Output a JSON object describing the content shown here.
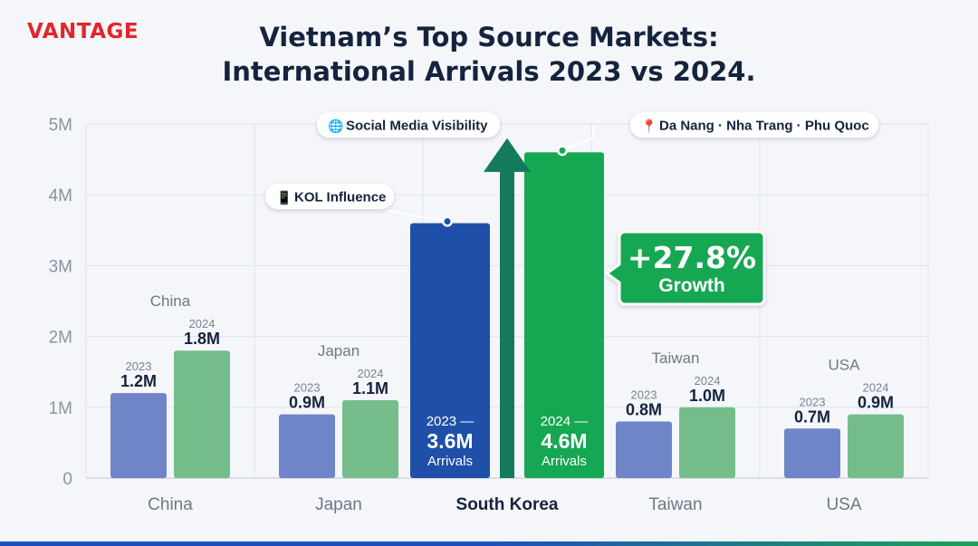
{
  "brand": {
    "name": "VANTAGE",
    "color": "#e0262c"
  },
  "title_lines": [
    "Vietnam’s Top Source Markets:",
    "International Arrivals 2023 vs 2024."
  ],
  "chart_data": {
    "type": "bar",
    "title": "Vietnam’s Top Source Markets: International Arrivals 2023 vs 2024.",
    "categories": [
      "China",
      "Japan",
      "South Korea",
      "Taiwan",
      "USA"
    ],
    "highlight_category": "South Korea",
    "series": [
      {
        "name": "2023",
        "values": [
          1.2,
          0.9,
          3.6,
          0.8,
          0.7
        ],
        "value_labels": [
          "1.2M",
          "0.9M",
          "3.6M",
          "0.8M",
          "0.7M"
        ],
        "color": "#6f85c7",
        "highlight_color": "#1f4fa8"
      },
      {
        "name": "2024",
        "values": [
          1.8,
          1.1,
          4.6,
          1.0,
          0.9
        ],
        "value_labels": [
          "1.8M",
          "1.1M",
          "4.6M",
          "1.0M",
          "0.9M"
        ],
        "color": "#74bd8a",
        "highlight_color": "#16a752"
      }
    ],
    "y_ticks": [
      0,
      1,
      2,
      3,
      4,
      5
    ],
    "y_tick_labels": [
      "0",
      "1M",
      "2M",
      "3M",
      "4M",
      "5M"
    ],
    "ylim": [
      0,
      5
    ],
    "grid": true,
    "highlight_bar_text": {
      "2023": {
        "head": "2023 —",
        "value": "3.6M",
        "tail": "Arrivals"
      },
      "2024": {
        "head": "2024 —",
        "value": "4.6M",
        "tail": "Arrivals"
      }
    },
    "growth_callout": {
      "value": "+27.8%",
      "label": "Growth",
      "color": "#16a752"
    },
    "annotations": [
      {
        "icon": "phone-icon",
        "glyph": "📱",
        "text": "KOL Influence",
        "anchor_series": "2023"
      },
      {
        "icon": "globe-icon",
        "glyph": "🌐",
        "text": "Social Media Visibility",
        "anchor_series": "arrow"
      },
      {
        "icon": "pin-icon",
        "glyph": "📍",
        "text": "Da Nang · Nha Trang · Phu Quoc",
        "anchor_series": "2024"
      }
    ],
    "arrow_color": "#147a5e"
  }
}
